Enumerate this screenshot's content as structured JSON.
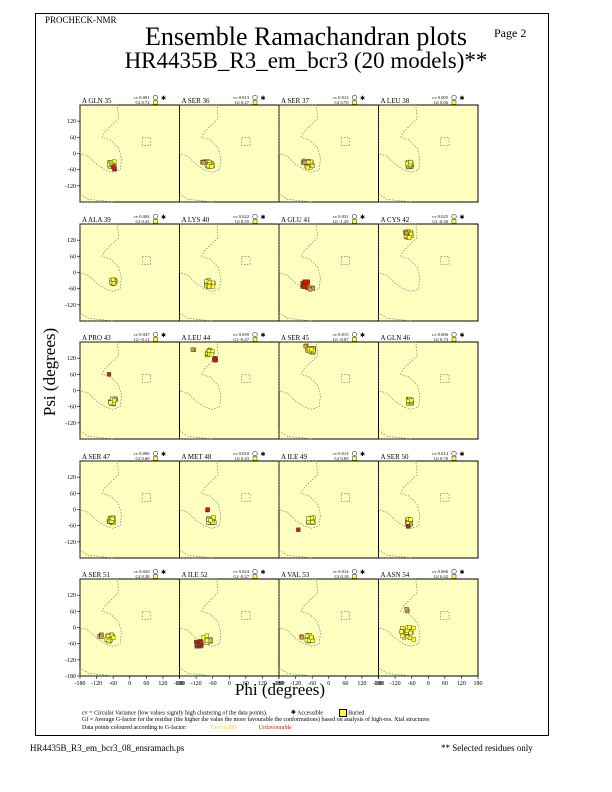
{
  "header": {
    "program": "PROCHECK-NMR",
    "page": "Page  2"
  },
  "title": {
    "line1": "Ensemble Ramachandran plots",
    "line2": "HR4435B_R3_em_bcr3 (20 models)**"
  },
  "axes": {
    "ylabel": "Psi (degrees)",
    "xlabel": "Phi (degrees)",
    "y_ticks": [
      120,
      60,
      0,
      -60,
      -120
    ],
    "bottom_y_ticks": [
      120,
      60,
      0,
      -60,
      -120,
      -180
    ],
    "x_ticks": [
      "-180",
      "-120",
      "-60",
      "0",
      "60",
      "120",
      "180"
    ]
  },
  "legend": {
    "cv_line": "cv = Circular Variance (low values signify high clustering of the data points).",
    "accessible": "Accessible",
    "buried": "Buried",
    "gf_line": "Gf = Average G-factor for the residue (the higher the value the more favourable the conformations) based on analysis of high-res. Xtal structures",
    "colour_line": "Data points coloured according to G-factor:",
    "favourable": "Favourable",
    "unfavourable": "Unfavourable"
  },
  "colors": {
    "plot_bg": "#ffffc0",
    "favourable": "#ffff33",
    "mid": "#d2a23a",
    "unfavourable": "#cc2200"
  },
  "footer": {
    "left": "HR4435B_R3_em_bcr3_08_ensramach.ps",
    "right": "** Selected residues only"
  },
  "chart_data": {
    "type": "scatter",
    "xlim": [
      -180,
      180
    ],
    "ylim": [
      -180,
      180
    ],
    "panels": [
      {
        "label": "A GLN 35",
        "cv": "cv 0.001",
        "gf": "Gf 0.72",
        "clusters": [
          {
            "x": -65,
            "y": -40,
            "n": 16,
            "spread": 10,
            "tone": "fav"
          },
          {
            "x": -55,
            "y": -55,
            "n": 4,
            "spread": 6,
            "tone": "unf"
          }
        ]
      },
      {
        "label": "A SER 36",
        "cv": "cv 0.013",
        "gf": "Gf 0.27",
        "clusters": [
          {
            "x": -70,
            "y": -40,
            "n": 16,
            "spread": 12,
            "tone": "fav"
          },
          {
            "x": -95,
            "y": -35,
            "n": 4,
            "spread": 5,
            "tone": "mid"
          }
        ]
      },
      {
        "label": "A SER 37",
        "cv": "cv 0.013",
        "gf": "Gf 0.70",
        "clusters": [
          {
            "x": -68,
            "y": -40,
            "n": 17,
            "spread": 12,
            "tone": "fav"
          },
          {
            "x": -90,
            "y": -30,
            "n": 3,
            "spread": 4,
            "tone": "mid"
          }
        ]
      },
      {
        "label": "A LEU 38",
        "cv": "cv 0.005",
        "gf": "Gf 0.66",
        "clusters": [
          {
            "x": -65,
            "y": -40,
            "n": 20,
            "spread": 10,
            "tone": "fav"
          }
        ]
      },
      {
        "label": "A ALA 39",
        "cv": "cv 0.004",
        "gf": "Gf 0.41",
        "clusters": [
          {
            "x": -60,
            "y": -35,
            "n": 20,
            "spread": 8,
            "tone": "fav"
          }
        ]
      },
      {
        "label": "A LYS 40",
        "cv": "cv 0.022",
        "gf": "Gf 0.55",
        "clusters": [
          {
            "x": -70,
            "y": -40,
            "n": 20,
            "spread": 14,
            "tone": "fav"
          }
        ]
      },
      {
        "label": "A GLU 41",
        "cv": "cv 0.031",
        "gf": "Gf -1.29",
        "clusters": [
          {
            "x": -85,
            "y": -45,
            "n": 14,
            "spread": 12,
            "tone": "unf"
          },
          {
            "x": -65,
            "y": -60,
            "n": 6,
            "spread": 8,
            "tone": "mid"
          }
        ]
      },
      {
        "label": "A CYS 42",
        "cv": "cv 0.025",
        "gf": "Gf -0.30",
        "clusters": [
          {
            "x": -70,
            "y": 140,
            "n": 16,
            "spread": 12,
            "tone": "fav"
          },
          {
            "x": -80,
            "y": 150,
            "n": 4,
            "spread": 6,
            "tone": "mid"
          }
        ]
      },
      {
        "label": "A PRO 43",
        "cv": "cv 0.047",
        "gf": "Gf -0.12",
        "clusters": [
          {
            "x": -60,
            "y": -40,
            "n": 19,
            "spread": 10,
            "tone": "fav"
          },
          {
            "x": -75,
            "y": 60,
            "n": 1,
            "spread": 0,
            "tone": "unf"
          }
        ]
      },
      {
        "label": "A LEU 44",
        "cv": "cv 0.039",
        "gf": "Gf -0.47",
        "clusters": [
          {
            "x": -70,
            "y": 140,
            "n": 14,
            "spread": 12,
            "tone": "fav"
          },
          {
            "x": -50,
            "y": 115,
            "n": 4,
            "spread": 6,
            "tone": "unf"
          },
          {
            "x": -130,
            "y": 150,
            "n": 2,
            "spread": 3,
            "tone": "mid"
          }
        ]
      },
      {
        "label": "A SER 45",
        "cv": "cv 0.015",
        "gf": "Gf -0.07",
        "clusters": [
          {
            "x": -65,
            "y": 150,
            "n": 18,
            "spread": 12,
            "tone": "fav"
          },
          {
            "x": -80,
            "y": 165,
            "n": 2,
            "spread": 4,
            "tone": "mid"
          }
        ]
      },
      {
        "label": "A GLN 46",
        "cv": "cv 0.006",
        "gf": "Gf 0.73",
        "clusters": [
          {
            "x": -65,
            "y": -40,
            "n": 20,
            "spread": 8,
            "tone": "fav"
          }
        ]
      },
      {
        "label": "A SER 47",
        "cv": "cv 0.006",
        "gf": "Gf 0.60",
        "clusters": [
          {
            "x": -68,
            "y": -40,
            "n": 20,
            "spread": 10,
            "tone": "fav"
          }
        ]
      },
      {
        "label": "A MET 48",
        "cv": "cv 0.020",
        "gf": "Gf 0.43",
        "clusters": [
          {
            "x": -65,
            "y": -40,
            "n": 18,
            "spread": 12,
            "tone": "fav"
          },
          {
            "x": -80,
            "y": 0,
            "n": 2,
            "spread": 3,
            "tone": "unf"
          }
        ]
      },
      {
        "label": "A ILE 49",
        "cv": "cv 0.014",
        "gf": "Gf 0.69",
        "clusters": [
          {
            "x": -65,
            "y": -40,
            "n": 19,
            "spread": 10,
            "tone": "fav"
          },
          {
            "x": -110,
            "y": -75,
            "n": 1,
            "spread": 0,
            "tone": "unf"
          }
        ]
      },
      {
        "label": "A SER 50",
        "cv": "cv 0.014",
        "gf": "Gf 0.70",
        "clusters": [
          {
            "x": -68,
            "y": -45,
            "n": 18,
            "spread": 10,
            "tone": "fav"
          },
          {
            "x": -75,
            "y": -60,
            "n": 2,
            "spread": 3,
            "tone": "unf"
          }
        ]
      },
      {
        "label": "A SER 51",
        "cv": "cv 0.020",
        "gf": "Gf 0.38",
        "clusters": [
          {
            "x": -70,
            "y": -40,
            "n": 16,
            "spread": 14,
            "tone": "fav"
          },
          {
            "x": -105,
            "y": -30,
            "n": 4,
            "spread": 6,
            "tone": "mid"
          }
        ]
      },
      {
        "label": "A ILE 52",
        "cv": "cv 0.024",
        "gf": "Gf -0.27",
        "clusters": [
          {
            "x": -80,
            "y": -45,
            "n": 12,
            "spread": 16,
            "tone": "fav"
          },
          {
            "x": -110,
            "y": -60,
            "n": 8,
            "spread": 10,
            "tone": "unf"
          }
        ]
      },
      {
        "label": "A VAL 53",
        "cv": "cv 0.014",
        "gf": "Gf 0.18",
        "clusters": [
          {
            "x": -68,
            "y": -40,
            "n": 18,
            "spread": 12,
            "tone": "fav"
          },
          {
            "x": -100,
            "y": -35,
            "n": 2,
            "spread": 4,
            "tone": "mid"
          }
        ]
      },
      {
        "label": "A ASN 54",
        "cv": "cv 0.066",
        "gf": "Gf 0.42",
        "clusters": [
          {
            "x": -75,
            "y": -20,
            "n": 18,
            "spread": 24,
            "tone": "fav"
          },
          {
            "x": -75,
            "y": 65,
            "n": 2,
            "spread": 4,
            "tone": "mid"
          }
        ]
      }
    ]
  }
}
